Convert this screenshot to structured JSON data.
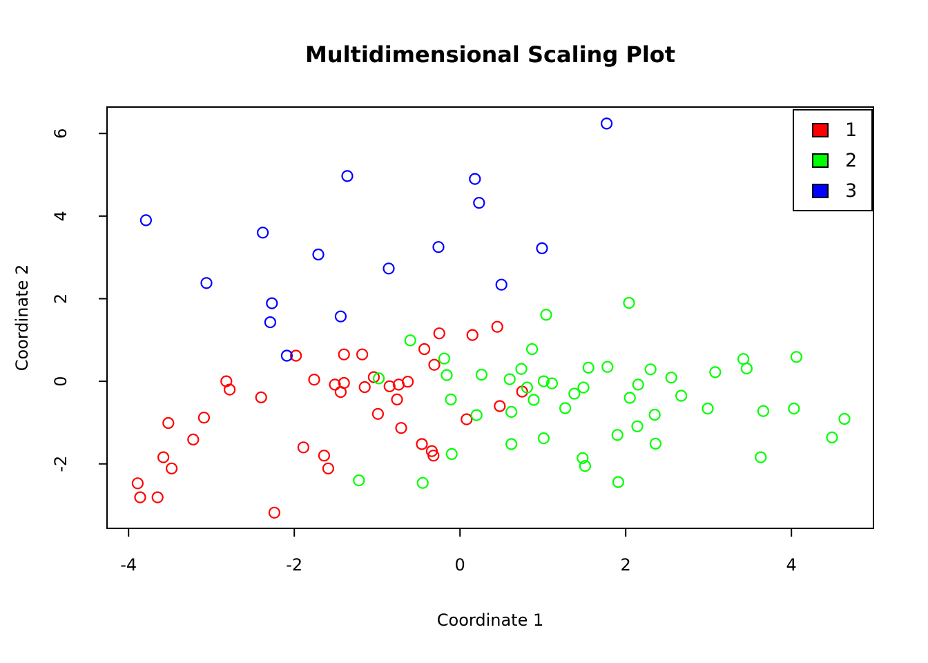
{
  "chart_data": {
    "type": "scatter",
    "title": "Multidimensional Scaling Plot",
    "xlabel": "Coordinate 1",
    "ylabel": "Coordinate 2",
    "xlim": [
      -4.26,
      4.99
    ],
    "ylim": [
      -3.56,
      6.64
    ],
    "x_ticks": [
      "-4",
      "-2",
      "0",
      "2",
      "4"
    ],
    "x_tick_values": [
      -4,
      -2,
      0,
      2,
      4
    ],
    "y_ticks": [
      "-2",
      "0",
      "2",
      "4",
      "6"
    ],
    "y_tick_values": [
      -2,
      0,
      2,
      4,
      6
    ],
    "grid": false,
    "point_style": "open-circle",
    "legend": {
      "position": "top-right",
      "entries": [
        {
          "label": "1",
          "color": "#FF0000"
        },
        {
          "label": "2",
          "color": "#00FF00"
        },
        {
          "label": "3",
          "color": "#0000FF"
        }
      ]
    },
    "series": [
      {
        "name": "1",
        "color": "#FF0000",
        "points": [
          [
            -3.89,
            -2.47
          ],
          [
            -3.86,
            -2.81
          ],
          [
            -3.65,
            -2.81
          ],
          [
            -3.58,
            -1.84
          ],
          [
            -3.52,
            -1.01
          ],
          [
            -3.48,
            -2.11
          ],
          [
            -3.22,
            -1.41
          ],
          [
            -3.09,
            -0.88
          ],
          [
            -2.82,
            0.0
          ],
          [
            -2.78,
            -0.2
          ],
          [
            -2.4,
            -0.39
          ],
          [
            -2.24,
            -3.18
          ],
          [
            -1.98,
            0.62
          ],
          [
            -1.89,
            -1.6
          ],
          [
            -1.76,
            0.04
          ],
          [
            -1.64,
            -1.8
          ],
          [
            -1.59,
            -2.11
          ],
          [
            -1.51,
            -0.08
          ],
          [
            -1.44,
            -0.26
          ],
          [
            -1.4,
            -0.04
          ],
          [
            -1.4,
            0.65
          ],
          [
            -1.18,
            0.65
          ],
          [
            -1.15,
            -0.14
          ],
          [
            -1.04,
            0.1
          ],
          [
            -0.99,
            -0.79
          ],
          [
            -0.85,
            -0.12
          ],
          [
            -0.76,
            -0.44
          ],
          [
            -0.74,
            -0.08
          ],
          [
            -0.71,
            -1.13
          ],
          [
            -0.63,
            -0.01
          ],
          [
            -0.46,
            -1.52
          ],
          [
            -0.43,
            0.78
          ],
          [
            -0.34,
            -1.69
          ],
          [
            -0.32,
            -1.8
          ],
          [
            -0.31,
            0.4
          ],
          [
            -0.25,
            1.16
          ],
          [
            0.08,
            -0.92
          ],
          [
            0.15,
            1.12
          ],
          [
            0.45,
            1.32
          ],
          [
            0.48,
            -0.6
          ],
          [
            0.75,
            -0.25
          ]
        ]
      },
      {
        "name": "2",
        "color": "#00FF00",
        "points": [
          [
            -1.22,
            -2.4
          ],
          [
            -0.98,
            0.07
          ],
          [
            -0.6,
            0.99
          ],
          [
            -0.45,
            -2.46
          ],
          [
            -0.19,
            0.55
          ],
          [
            -0.16,
            0.15
          ],
          [
            -0.11,
            -0.44
          ],
          [
            -0.1,
            -1.76
          ],
          [
            0.2,
            -0.82
          ],
          [
            0.26,
            0.16
          ],
          [
            0.6,
            0.05
          ],
          [
            0.62,
            -0.74
          ],
          [
            0.62,
            -1.52
          ],
          [
            0.74,
            0.3
          ],
          [
            0.81,
            -0.15
          ],
          [
            0.87,
            0.78
          ],
          [
            0.89,
            -0.45
          ],
          [
            1.01,
            0.0
          ],
          [
            1.01,
            -1.38
          ],
          [
            1.04,
            1.61
          ],
          [
            1.11,
            -0.05
          ],
          [
            1.27,
            -0.65
          ],
          [
            1.38,
            -0.3
          ],
          [
            1.49,
            -0.15
          ],
          [
            1.48,
            -1.86
          ],
          [
            1.51,
            -2.05
          ],
          [
            1.55,
            0.33
          ],
          [
            1.78,
            0.35
          ],
          [
            1.9,
            -1.3
          ],
          [
            1.91,
            -2.44
          ],
          [
            2.04,
            1.9
          ],
          [
            2.05,
            -0.4
          ],
          [
            2.15,
            -0.08
          ],
          [
            2.14,
            -1.09
          ],
          [
            2.3,
            0.29
          ],
          [
            2.35,
            -0.81
          ],
          [
            2.36,
            -1.51
          ],
          [
            2.55,
            0.09
          ],
          [
            2.67,
            -0.35
          ],
          [
            2.99,
            -0.66
          ],
          [
            3.08,
            0.22
          ],
          [
            3.42,
            0.54
          ],
          [
            3.46,
            0.31
          ],
          [
            3.63,
            -1.84
          ],
          [
            3.66,
            -0.72
          ],
          [
            4.03,
            -0.66
          ],
          [
            4.06,
            0.59
          ],
          [
            4.49,
            -1.36
          ],
          [
            4.64,
            -0.91
          ]
        ]
      },
      {
        "name": "3",
        "color": "#0000FF",
        "points": [
          [
            -3.79,
            3.9
          ],
          [
            -3.06,
            2.38
          ],
          [
            -2.38,
            3.6
          ],
          [
            -2.29,
            1.43
          ],
          [
            -2.27,
            1.89
          ],
          [
            -2.09,
            0.62
          ],
          [
            -1.71,
            3.07
          ],
          [
            -1.44,
            1.57
          ],
          [
            -1.36,
            4.97
          ],
          [
            -0.86,
            2.73
          ],
          [
            -0.26,
            3.25
          ],
          [
            0.18,
            4.9
          ],
          [
            0.23,
            4.32
          ],
          [
            0.5,
            2.34
          ],
          [
            0.99,
            3.22
          ],
          [
            1.77,
            6.24
          ]
        ]
      }
    ]
  }
}
